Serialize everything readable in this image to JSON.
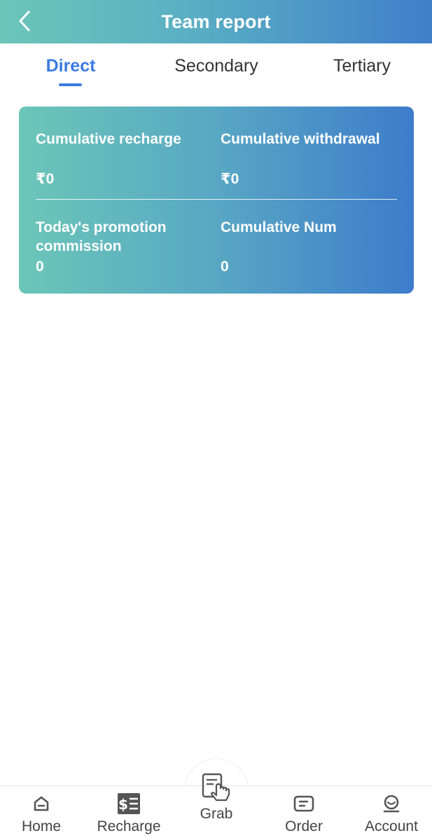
{
  "header": {
    "title": "Team report",
    "back_icon": "chevron-left-icon"
  },
  "tabs": [
    {
      "label": "Direct",
      "active": true
    },
    {
      "label": "Secondary",
      "active": false
    },
    {
      "label": "Tertiary",
      "active": false
    }
  ],
  "stats": {
    "cumulative_recharge_label": "Cumulative recharge",
    "cumulative_recharge_value": "₹0",
    "cumulative_withdrawal_label": "Cumulative withdrawal",
    "cumulative_withdrawal_value": "₹0",
    "promotion_commission_label": "Today's promotion commission",
    "promotion_commission_value": "0",
    "cumulative_num_label": "Cumulative Num",
    "cumulative_num_value": "0"
  },
  "bottom_nav": [
    {
      "label": "Home",
      "icon": "home-icon"
    },
    {
      "label": "Recharge",
      "icon": "recharge-icon"
    },
    {
      "label": "Grab",
      "icon": "grab-hand-icon"
    },
    {
      "label": "Order",
      "icon": "order-icon"
    },
    {
      "label": "Account",
      "icon": "account-icon"
    }
  ],
  "colors": {
    "accent": "#3b7be0",
    "gradient_start": "#6cc6b8",
    "gradient_end": "#3d7ccb"
  }
}
